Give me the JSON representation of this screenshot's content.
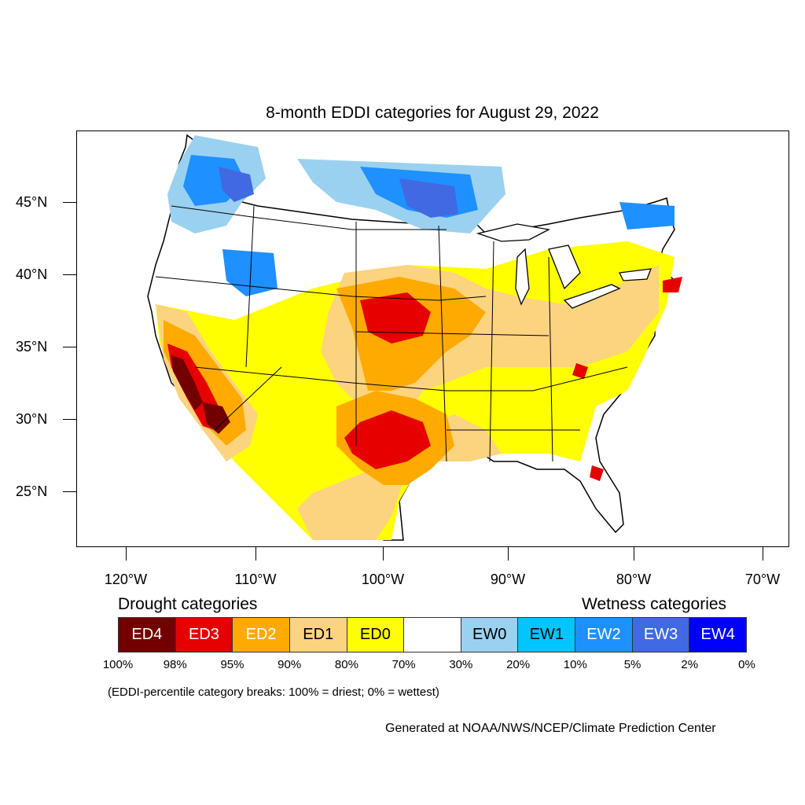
{
  "title": "8-month EDDI categories for August 29, 2022",
  "lat_labels": [
    "45°N",
    "40°N",
    "35°N",
    "30°N",
    "25°N"
  ],
  "lon_labels": [
    "120°W",
    "110°W",
    "100°W",
    "90°W",
    "80°W",
    "70°W"
  ],
  "legend": {
    "drought_heading": "Drought categories",
    "wetness_heading": "Wetness categories",
    "categories": [
      {
        "label": "ED4",
        "color": "#730000",
        "text_color": "#ffffff"
      },
      {
        "label": "ED3",
        "color": "#e60000",
        "text_color": "#ffffff"
      },
      {
        "label": "ED2",
        "color": "#ffaa00",
        "text_color": "#ffffff"
      },
      {
        "label": "ED1",
        "color": "#fcd37f",
        "text_color": "#000000"
      },
      {
        "label": "ED0",
        "color": "#ffff00",
        "text_color": "#000000"
      },
      {
        "label": "",
        "color": "#ffffff",
        "text_color": "#000000"
      },
      {
        "label": "EW0",
        "color": "#9bd1f0",
        "text_color": "#000000"
      },
      {
        "label": "EW1",
        "color": "#00c5ff",
        "text_color": "#000000"
      },
      {
        "label": "EW2",
        "color": "#1e90ff",
        "text_color": "#ffffff"
      },
      {
        "label": "EW3",
        "color": "#4169e1",
        "text_color": "#ffffff"
      },
      {
        "label": "EW4",
        "color": "#0000ff",
        "text_color": "#ffffff"
      }
    ],
    "breaks": [
      "100%",
      "98%",
      "95%",
      "90%",
      "80%",
      "70%",
      "30%",
      "20%",
      "10%",
      "5%",
      "2%",
      "0%"
    ]
  },
  "note": "(EDDI-percentile category breaks: 100% = driest; 0% = wettest)",
  "credit": "Generated at NOAA/NWS/NCEP/Climate Prediction Center"
}
